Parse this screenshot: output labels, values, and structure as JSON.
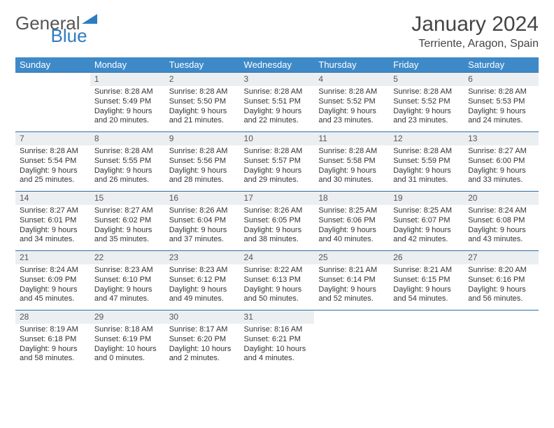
{
  "logo": {
    "part1": "General",
    "part2": "Blue"
  },
  "title": "January 2024",
  "location": "Terriente, Aragon, Spain",
  "colors": {
    "header_bg": "#3e8ac9",
    "daynum_bg": "#eceff1",
    "row_border": "#2d6ea8",
    "logo_blue": "#2d7cc0"
  },
  "weekdays": [
    "Sunday",
    "Monday",
    "Tuesday",
    "Wednesday",
    "Thursday",
    "Friday",
    "Saturday"
  ],
  "weeks": [
    {
      "nums": [
        "",
        "1",
        "2",
        "3",
        "4",
        "5",
        "6"
      ],
      "cells": [
        "",
        "Sunrise: 8:28 AM\nSunset: 5:49 PM\nDaylight: 9 hours and 20 minutes.",
        "Sunrise: 8:28 AM\nSunset: 5:50 PM\nDaylight: 9 hours and 21 minutes.",
        "Sunrise: 8:28 AM\nSunset: 5:51 PM\nDaylight: 9 hours and 22 minutes.",
        "Sunrise: 8:28 AM\nSunset: 5:52 PM\nDaylight: 9 hours and 23 minutes.",
        "Sunrise: 8:28 AM\nSunset: 5:52 PM\nDaylight: 9 hours and 23 minutes.",
        "Sunrise: 8:28 AM\nSunset: 5:53 PM\nDaylight: 9 hours and 24 minutes."
      ]
    },
    {
      "nums": [
        "7",
        "8",
        "9",
        "10",
        "11",
        "12",
        "13"
      ],
      "cells": [
        "Sunrise: 8:28 AM\nSunset: 5:54 PM\nDaylight: 9 hours and 25 minutes.",
        "Sunrise: 8:28 AM\nSunset: 5:55 PM\nDaylight: 9 hours and 26 minutes.",
        "Sunrise: 8:28 AM\nSunset: 5:56 PM\nDaylight: 9 hours and 28 minutes.",
        "Sunrise: 8:28 AM\nSunset: 5:57 PM\nDaylight: 9 hours and 29 minutes.",
        "Sunrise: 8:28 AM\nSunset: 5:58 PM\nDaylight: 9 hours and 30 minutes.",
        "Sunrise: 8:28 AM\nSunset: 5:59 PM\nDaylight: 9 hours and 31 minutes.",
        "Sunrise: 8:27 AM\nSunset: 6:00 PM\nDaylight: 9 hours and 33 minutes."
      ]
    },
    {
      "nums": [
        "14",
        "15",
        "16",
        "17",
        "18",
        "19",
        "20"
      ],
      "cells": [
        "Sunrise: 8:27 AM\nSunset: 6:01 PM\nDaylight: 9 hours and 34 minutes.",
        "Sunrise: 8:27 AM\nSunset: 6:02 PM\nDaylight: 9 hours and 35 minutes.",
        "Sunrise: 8:26 AM\nSunset: 6:04 PM\nDaylight: 9 hours and 37 minutes.",
        "Sunrise: 8:26 AM\nSunset: 6:05 PM\nDaylight: 9 hours and 38 minutes.",
        "Sunrise: 8:25 AM\nSunset: 6:06 PM\nDaylight: 9 hours and 40 minutes.",
        "Sunrise: 8:25 AM\nSunset: 6:07 PM\nDaylight: 9 hours and 42 minutes.",
        "Sunrise: 8:24 AM\nSunset: 6:08 PM\nDaylight: 9 hours and 43 minutes."
      ]
    },
    {
      "nums": [
        "21",
        "22",
        "23",
        "24",
        "25",
        "26",
        "27"
      ],
      "cells": [
        "Sunrise: 8:24 AM\nSunset: 6:09 PM\nDaylight: 9 hours and 45 minutes.",
        "Sunrise: 8:23 AM\nSunset: 6:10 PM\nDaylight: 9 hours and 47 minutes.",
        "Sunrise: 8:23 AM\nSunset: 6:12 PM\nDaylight: 9 hours and 49 minutes.",
        "Sunrise: 8:22 AM\nSunset: 6:13 PM\nDaylight: 9 hours and 50 minutes.",
        "Sunrise: 8:21 AM\nSunset: 6:14 PM\nDaylight: 9 hours and 52 minutes.",
        "Sunrise: 8:21 AM\nSunset: 6:15 PM\nDaylight: 9 hours and 54 minutes.",
        "Sunrise: 8:20 AM\nSunset: 6:16 PM\nDaylight: 9 hours and 56 minutes."
      ]
    },
    {
      "nums": [
        "28",
        "29",
        "30",
        "31",
        "",
        "",
        ""
      ],
      "cells": [
        "Sunrise: 8:19 AM\nSunset: 6:18 PM\nDaylight: 9 hours and 58 minutes.",
        "Sunrise: 8:18 AM\nSunset: 6:19 PM\nDaylight: 10 hours and 0 minutes.",
        "Sunrise: 8:17 AM\nSunset: 6:20 PM\nDaylight: 10 hours and 2 minutes.",
        "Sunrise: 8:16 AM\nSunset: 6:21 PM\nDaylight: 10 hours and 4 minutes.",
        "",
        "",
        ""
      ]
    }
  ]
}
